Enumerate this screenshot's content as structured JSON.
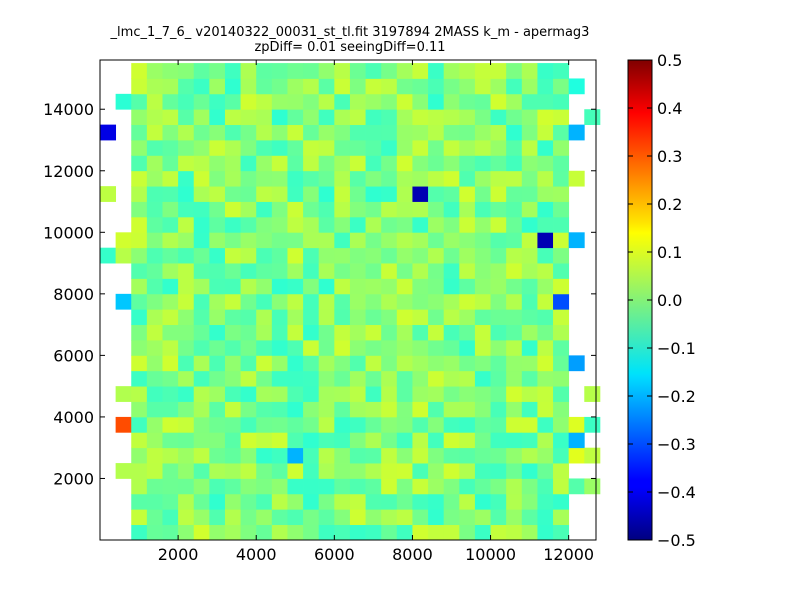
{
  "chart_data": {
    "type": "heatmap",
    "title_line1": "_lmc_1_7_6_ v20140322_00031_st_tl.fit 3197894 2MASS k_m - apermag3",
    "title_line2": "zpDiff= 0.01 seeingDiff=0.11",
    "xlim": [
      0,
      12700
    ],
    "ylim": [
      0,
      15600
    ],
    "xticks": [
      2000,
      4000,
      6000,
      8000,
      10000,
      12000
    ],
    "yticks": [
      2000,
      4000,
      6000,
      8000,
      10000,
      12000,
      14000
    ],
    "xtick_labels": [
      "2000",
      "4000",
      "6000",
      "8000",
      "10000",
      "12000"
    ],
    "ytick_labels": [
      "2000",
      "4000",
      "6000",
      "8000",
      "10000",
      "12000",
      "14000"
    ],
    "colorbar": {
      "vmin": -0.5,
      "vmax": 0.5,
      "ticks": [
        0.5,
        0.4,
        0.3,
        0.2,
        0.1,
        0.0,
        -0.1,
        -0.2,
        -0.3,
        -0.4,
        -0.5
      ],
      "tick_labels": [
        "0.5",
        "0.4",
        "0.3",
        "0.2",
        "0.1",
        "0.0",
        "−0.1",
        "−0.2",
        "−0.3",
        "−0.4",
        "−0.5"
      ],
      "colormap": "jet"
    },
    "grid": {
      "x0": 0,
      "dx": 400,
      "y0": 0,
      "dy": 500
    },
    "notable_cells": [
      {
        "x": 0,
        "y": 13000,
        "value": -0.4
      },
      {
        "x": 400,
        "y": 3500,
        "value": 0.3
      },
      {
        "x": 8000,
        "y": 11000,
        "value": -0.45
      },
      {
        "x": 11200,
        "y": 9500,
        "value": -0.45
      },
      {
        "x": 11600,
        "y": 7500,
        "value": -0.3
      },
      {
        "x": 12000,
        "y": 5500,
        "value": -0.22
      },
      {
        "x": 12000,
        "y": 13000,
        "value": -0.2
      },
      {
        "x": 12000,
        "y": 9500,
        "value": -0.2
      },
      {
        "x": 12000,
        "y": 3000,
        "value": -0.2
      },
      {
        "x": 4800,
        "y": 2500,
        "value": -0.2
      },
      {
        "x": 400,
        "y": 7500,
        "value": -0.18
      },
      {
        "x": 0,
        "y": 11000,
        "value": 0.06
      },
      {
        "x": 400,
        "y": 9500,
        "value": 0.08
      },
      {
        "x": 8000,
        "y": 12500,
        "value": 0.07
      },
      {
        "x": 12000,
        "y": 11500,
        "value": 0.07
      }
    ]
  }
}
